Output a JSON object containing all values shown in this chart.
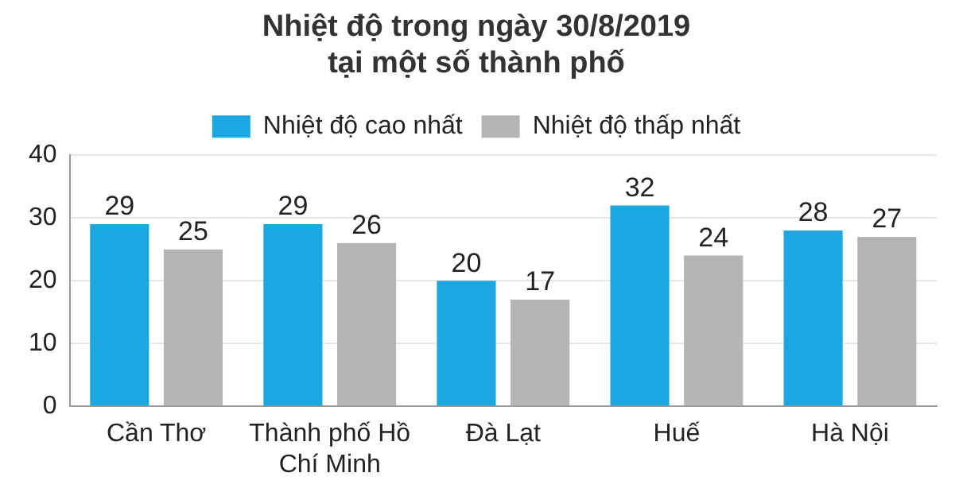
{
  "chart_data": {
    "type": "bar",
    "title": "Nhiệt độ trong ngày 30/8/2019\ntại một số thành phố",
    "categories": [
      "Cần Thơ",
      "Thành phố Hồ Chí Minh",
      "Đà Lạt",
      "Huế",
      "Hà Nội"
    ],
    "series": [
      {
        "name": "Nhiệt độ cao nhất",
        "color": "#1ba8e0",
        "values": [
          29,
          29,
          20,
          32,
          28
        ]
      },
      {
        "name": "Nhiệt độ thấp nhất",
        "color": "#b5b5b5",
        "values": [
          25,
          26,
          17,
          24,
          27
        ]
      }
    ],
    "ylim": [
      0,
      40
    ],
    "yticks": [
      0,
      10,
      20,
      30,
      40
    ],
    "grid": "y",
    "legend": "top",
    "data_labels": true
  }
}
